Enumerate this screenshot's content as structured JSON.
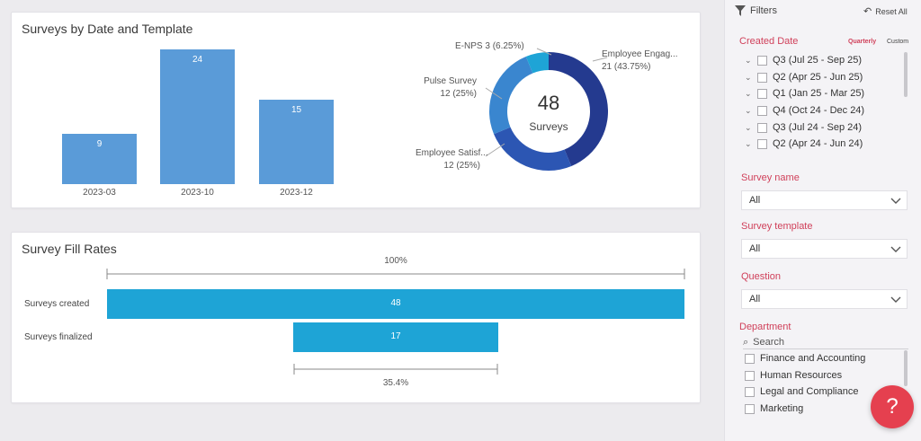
{
  "bar_card": {
    "title": "Surveys by Date and Template"
  },
  "chart_data": [
    {
      "type": "bar",
      "title": "Surveys by Date and Template",
      "categories": [
        "2023-03",
        "2023-10",
        "2023-12"
      ],
      "values": [
        9,
        24,
        15
      ],
      "ylim": [
        0,
        24
      ],
      "color": "#5a9bd8"
    },
    {
      "type": "pie",
      "center_value": "48",
      "center_label": "Surveys",
      "slices": [
        {
          "label": "Employee Engag...",
          "value": 21,
          "pct": "(43.75%)",
          "color": "#243a8f"
        },
        {
          "label": "Employee Satisf...",
          "value": 12,
          "pct": "(25%)",
          "color": "#2c56b3"
        },
        {
          "label": "Pulse Survey",
          "value": 12,
          "pct": "(25%)",
          "color": "#3a86cf"
        },
        {
          "label": "E-NPS 3",
          "value": 3,
          "pct": "(6.25%)",
          "color": "#1ea4d6"
        }
      ]
    },
    {
      "type": "bar",
      "title": "Survey Fill Rates",
      "categories": [
        "Surveys created",
        "Surveys finalized"
      ],
      "values": [
        48,
        17
      ],
      "top_pct": "100%",
      "bottom_pct": "35.4%",
      "color": "#1ea4d6"
    }
  ],
  "fill_card": {
    "title": "Survey Fill Rates"
  },
  "filters": {
    "title": "Filters",
    "reset_label": "Reset All",
    "created_date": {
      "title": "Created Date",
      "mode_quarterly": "Quarterly",
      "mode_custom": "Custom",
      "items": [
        "Q3 (Jul 25 - Sep 25)",
        "Q2 (Apr 25 - Jun 25)",
        "Q1 (Jan 25 - Mar 25)",
        "Q4 (Oct 24 - Dec 24)",
        "Q3 (Jul 24 - Sep 24)",
        "Q2 (Apr 24 - Jun 24)"
      ]
    },
    "survey_name": {
      "title": "Survey name",
      "value": "All"
    },
    "survey_template": {
      "title": "Survey template",
      "value": "All"
    },
    "question": {
      "title": "Question",
      "value": "All"
    },
    "department": {
      "title": "Department",
      "search_placeholder": "Search",
      "items": [
        "Finance and Accounting",
        "Human Resources",
        "Legal and Compliance",
        "Marketing"
      ]
    }
  },
  "help_label": "?"
}
